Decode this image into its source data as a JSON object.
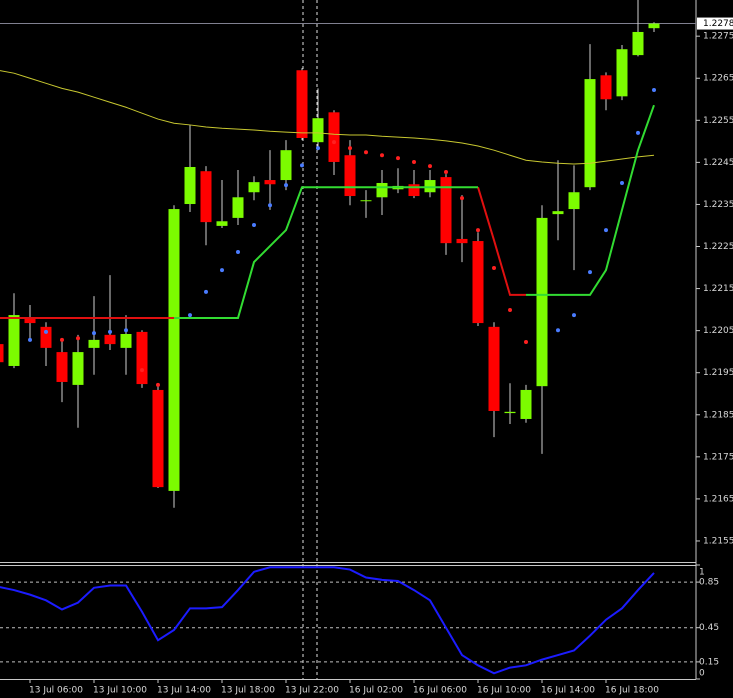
{
  "chart_data": [
    {
      "type": "candlestick",
      "categories": [
        null,
        null,
        "13 Jul 06:00",
        null,
        null,
        null,
        "13 Jul 10:00",
        null,
        null,
        null,
        "13 Jul 14:00",
        null,
        null,
        null,
        "13 Jul 18:00",
        null,
        null,
        null,
        "13 Jul 22:00",
        null,
        null,
        null,
        "16 Jul 02:00",
        null,
        null,
        null,
        "16 Jul 06:00",
        null,
        null,
        null,
        "16 Jul 10:00",
        null,
        null,
        null,
        "16 Jul 14:00",
        null,
        null,
        null,
        "16 Jul 18:00",
        null,
        null,
        null
      ],
      "open": [
        1.22018,
        1.21966,
        1.22078,
        1.22059,
        1.21999,
        1.21921,
        1.22009,
        1.2204,
        1.22009,
        1.22047,
        1.21909,
        1.21669,
        1.22351,
        1.22429,
        1.22299,
        1.22318,
        1.22379,
        1.22408,
        1.22408,
        1.22669,
        1.22498,
        1.22569,
        1.22467,
        1.22358,
        1.22367,
        1.22386,
        1.22398,
        1.22379,
        1.22415,
        1.22268,
        1.22263,
        1.22059,
        1.21854,
        1.2184,
        1.21918,
        1.22327,
        1.22339,
        1.22391,
        1.22657,
        1.22607,
        1.22705,
        1.22769
      ],
      "high": [
        1.22028,
        1.22139,
        1.22111,
        1.2207,
        1.22028,
        1.2204,
        1.22132,
        1.22182,
        1.22087,
        1.22051,
        1.21921,
        1.22348,
        1.22539,
        1.22441,
        1.22408,
        1.22432,
        1.22417,
        1.22479,
        1.22503,
        1.22674,
        1.22626,
        1.22574,
        1.22503,
        1.22384,
        1.22432,
        1.22436,
        1.22432,
        1.22432,
        1.22422,
        1.22372,
        1.22284,
        1.2207,
        1.21925,
        1.21921,
        1.22348,
        1.22455,
        1.22443,
        1.22731,
        1.22664,
        1.22729,
        1.22836,
        1.22783
      ],
      "low": [
        1.21968,
        1.21961,
        1.22028,
        1.21966,
        1.2188,
        1.21819,
        1.21945,
        1.22004,
        1.21945,
        1.21914,
        1.21676,
        1.21629,
        1.22332,
        1.22253,
        1.22294,
        1.22301,
        1.2236,
        1.22337,
        1.22384,
        1.22503,
        1.22479,
        1.2242,
        1.22348,
        1.22318,
        1.22325,
        1.22377,
        1.22365,
        1.22367,
        1.2223,
        1.22213,
        1.22061,
        1.21797,
        1.21828,
        1.21831,
        1.21757,
        1.22265,
        1.22194,
        1.22384,
        1.22574,
        1.22598,
        1.22702,
        1.2276
      ],
      "close": [
        1.21975,
        1.22087,
        1.22068,
        1.22009,
        1.21928,
        1.21999,
        1.22028,
        1.22018,
        1.22042,
        1.21923,
        1.21678,
        1.22339,
        1.22439,
        1.22308,
        1.2231,
        1.22367,
        1.22403,
        1.22398,
        1.22479,
        1.22508,
        1.22555,
        1.22451,
        1.2237,
        1.2236,
        1.22401,
        1.22394,
        1.2237,
        1.22408,
        1.22258,
        1.22258,
        1.22068,
        1.21859,
        1.21857,
        1.21909,
        1.22318,
        1.22334,
        1.22379,
        1.22648,
        1.226,
        1.22719,
        1.2276,
        1.2278
      ],
      "up_color": "#7cfc00",
      "down_color": "#ff0000",
      "wick_color": "#d0d0d0",
      "last_price": 1.2278,
      "overlays": [
        {
          "kind": "line",
          "color": "#c8c830",
          "values": [
            1.22669,
            1.22662,
            1.2265,
            1.22638,
            1.22626,
            1.22617,
            1.22605,
            1.22593,
            1.22581,
            1.22567,
            1.22553,
            1.22543,
            1.22539,
            1.22534,
            1.22531,
            1.22529,
            1.22527,
            1.22524,
            1.22522,
            1.2252,
            1.2252,
            1.22517,
            1.22515,
            1.22515,
            1.22512,
            1.2251,
            1.22508,
            1.22505,
            1.22501,
            1.22496,
            1.22489,
            1.22479,
            1.22467,
            1.22455,
            1.22451,
            1.22448,
            1.22446,
            1.22448,
            1.22453,
            1.22458,
            1.22463,
            1.22467
          ]
        },
        {
          "kind": "line",
          "color": "#e01010",
          "values": [
            1.2208,
            1.2208,
            1.2208,
            1.2208,
            1.2208,
            1.2208,
            1.2208,
            1.2208,
            1.2208,
            1.2208,
            1.2208,
            1.2208,
            null,
            null,
            null,
            null,
            null,
            null,
            null,
            null,
            null,
            null,
            null,
            null,
            null,
            null,
            null,
            null,
            null,
            null,
            1.22391,
            1.22265,
            1.22135,
            1.22135,
            null,
            null,
            null,
            null,
            null,
            null,
            null,
            null
          ]
        },
        {
          "kind": "line",
          "color": "#32dc32",
          "values": [
            null,
            null,
            null,
            null,
            null,
            null,
            null,
            null,
            null,
            null,
            null,
            1.2208,
            1.2208,
            1.2208,
            1.2208,
            1.2208,
            1.22213,
            1.22251,
            1.22289,
            1.22391,
            1.22391,
            1.22391,
            1.22391,
            1.22391,
            1.22391,
            1.22391,
            1.22391,
            1.22391,
            1.22391,
            1.22391,
            1.22391,
            null,
            null,
            1.22135,
            1.22135,
            1.22135,
            1.22135,
            1.22135,
            1.22194,
            1.22337,
            1.22479,
            1.22586
          ]
        },
        {
          "kind": "dots",
          "color": "#4a7cff",
          "values": [
            null,
            null,
            1.22028,
            1.22047,
            null,
            null,
            1.22044,
            1.22047,
            1.22051,
            null,
            null,
            null,
            1.22087,
            1.22142,
            1.22194,
            1.22237,
            1.22301,
            1.22348,
            1.22396,
            1.22443,
            1.22484,
            null,
            null,
            null,
            null,
            null,
            null,
            null,
            null,
            null,
            null,
            null,
            null,
            null,
            null,
            1.22051,
            1.22087,
            1.22189,
            1.22289,
            1.22401,
            1.2252,
            1.22622
          ]
        },
        {
          "kind": "dots",
          "color": "#ff2020",
          "values": [
            null,
            null,
            null,
            null,
            1.22028,
            1.22032,
            null,
            null,
            null,
            1.21956,
            1.21921,
            null,
            null,
            null,
            null,
            null,
            null,
            null,
            null,
            null,
            null,
            1.22498,
            1.22484,
            1.22474,
            1.22467,
            1.2246,
            1.22451,
            1.22441,
            1.22427,
            1.22365,
            1.22289,
            1.22199,
            1.22099,
            1.22023,
            null,
            null,
            null,
            null,
            null,
            null,
            null,
            null
          ]
        }
      ],
      "ylim": [
        1.215,
        1.22836
      ],
      "yticks": [
        1.2155,
        1.2165,
        1.2175,
        1.2185,
        1.2195,
        1.2205,
        1.2215,
        1.2225,
        1.2235,
        1.2245,
        1.2255,
        1.2265,
        1.2275
      ]
    },
    {
      "type": "line",
      "color": "#1c1cff",
      "values": [
        0.81,
        0.78,
        0.74,
        0.69,
        0.61,
        0.67,
        0.8,
        0.82,
        0.82,
        0.59,
        0.34,
        0.43,
        0.62,
        0.62,
        0.63,
        0.78,
        0.94,
        0.98,
        0.98,
        0.98,
        0.98,
        0.98,
        0.96,
        0.89,
        0.87,
        0.86,
        0.78,
        0.69,
        0.45,
        0.21,
        0.12,
        0.05,
        0.1,
        0.12,
        0.17,
        0.21,
        0.25,
        0.38,
        0.52,
        0.62,
        0.78,
        0.93
      ],
      "ylim": [
        0,
        1
      ],
      "yticks": [
        0,
        0.15,
        0.45,
        0.85,
        1
      ],
      "grid": true
    }
  ]
}
